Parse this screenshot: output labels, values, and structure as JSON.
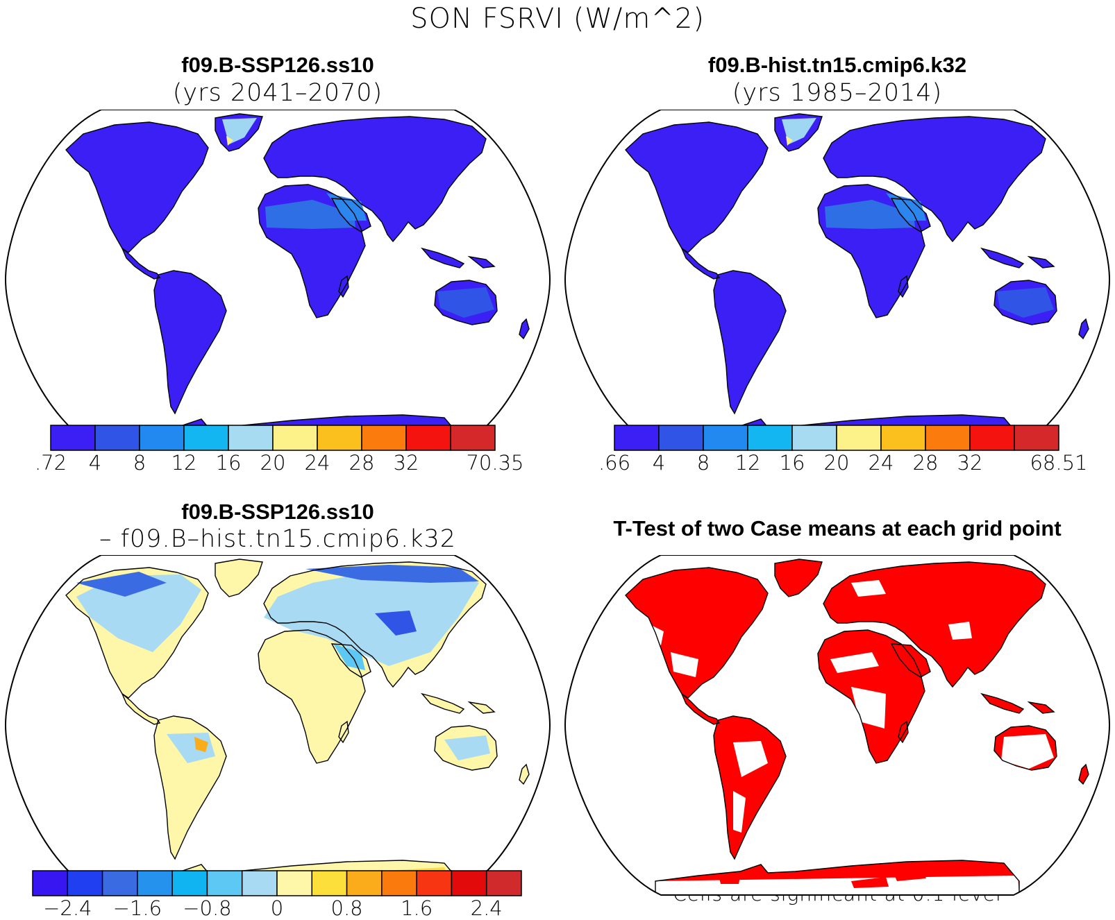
{
  "title": "SON FSRVI (W/m^2)",
  "panels": [
    {
      "id": "top-left",
      "title": "f09.B-SSP126.ss10",
      "subtitle": "(yrs 2041–2070)",
      "colorbar": {
        "colors": [
          "#3c1ff5",
          "#2f54e6",
          "#2189ef",
          "#14b6f1",
          "#a7dbf2",
          "#fdf28a",
          "#fbbf1e",
          "#fb7b0c",
          "#f5130f",
          "#d4282a"
        ],
        "labels": [
          ".72",
          "4",
          "8",
          "12",
          "16",
          "20",
          "24",
          "28",
          "32",
          "70.35"
        ]
      }
    },
    {
      "id": "top-right",
      "title": "f09.B-hist.tn15.cmip6.k32",
      "subtitle": "(yrs 1985–2014)",
      "colorbar": {
        "colors": [
          "#3c1ff5",
          "#2f54e6",
          "#2189ef",
          "#14b6f1",
          "#a7dbf2",
          "#fdf28a",
          "#fbbf1e",
          "#fb7b0c",
          "#f5130f",
          "#d4282a"
        ],
        "labels": [
          ".66",
          "4",
          "8",
          "12",
          "16",
          "20",
          "24",
          "28",
          "32",
          "68.51"
        ]
      }
    },
    {
      "id": "bottom-left",
      "title": "f09.B-SSP126.ss10",
      "subtitle": "– f09.B–hist.tn15.cmip6.k32",
      "colorbar": {
        "colors": [
          "#3816f2",
          "#1f3ff0",
          "#3b6be3",
          "#2592ee",
          "#10b4f1",
          "#5cc8f3",
          "#a8dbf3",
          "#fef6a8",
          "#fddf3c",
          "#fbac1b",
          "#fa7a0e",
          "#f73512",
          "#e20a0a",
          "#d12a2c"
        ],
        "labels": [
          "−2.4",
          "−1.6",
          "−0.8",
          "0",
          "0.8",
          "1.6",
          "2.4"
        ]
      }
    },
    {
      "id": "bottom-right",
      "title": "T-Test of two Case means at each grid point",
      "footnote": "Cells are significant at 0.1 level"
    }
  ]
}
